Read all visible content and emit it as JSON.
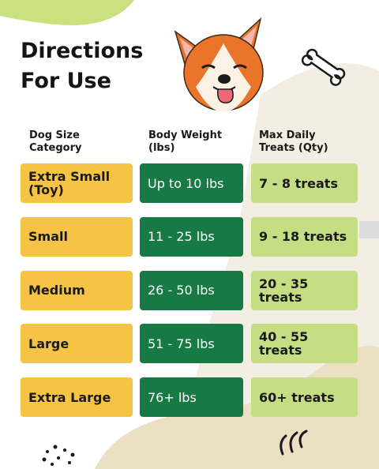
{
  "header": {
    "title": "Directions For Use"
  },
  "table": {
    "headers": [
      "Dog Size Category",
      "Body Weight (lbs)",
      "Max Daily Treats (Qty)"
    ],
    "rows": [
      [
        "Extra Small (Toy)",
        "Up to 10 lbs",
        "7 - 8 treats"
      ],
      [
        "Small",
        "11 - 25  lbs",
        "9 - 18 treats"
      ],
      [
        "Medium",
        "26 - 50  lbs",
        "20 - 35 treats"
      ],
      [
        "Large",
        "51 - 75  lbs",
        "40 - 55 treats"
      ],
      [
        "Extra Large",
        "76+ lbs",
        "60+ treats"
      ]
    ]
  }
}
